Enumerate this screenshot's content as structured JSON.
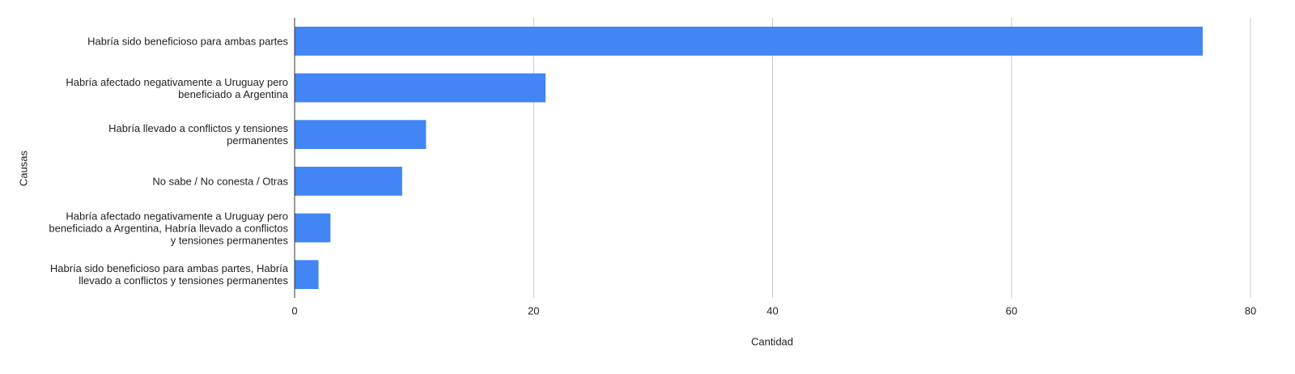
{
  "chart_data": {
    "type": "bar",
    "orientation": "horizontal",
    "x_label": "Cantidad",
    "y_label": "Causas",
    "categories": [
      "Habría sido beneficioso para ambas partes",
      "Habría afectado negativamente a Uruguay pero beneficiado a Argentina",
      "Habría llevado a conflictos y tensiones permanentes",
      "No sabe / No conesta / Otras",
      "Habría afectado negativamente a Uruguay pero beneficiado a Argentina, Habría llevado a conflictos y tensiones permanentes",
      "Habría sido beneficioso para ambas partes, Habría llevado a conflictos y tensiones permanentes"
    ],
    "values": [
      76,
      21,
      11,
      9,
      3,
      2
    ],
    "color": "#4285f4",
    "xlim": [
      0,
      80
    ],
    "xticks": [
      0,
      20,
      40,
      60,
      80
    ],
    "grid": true
  }
}
